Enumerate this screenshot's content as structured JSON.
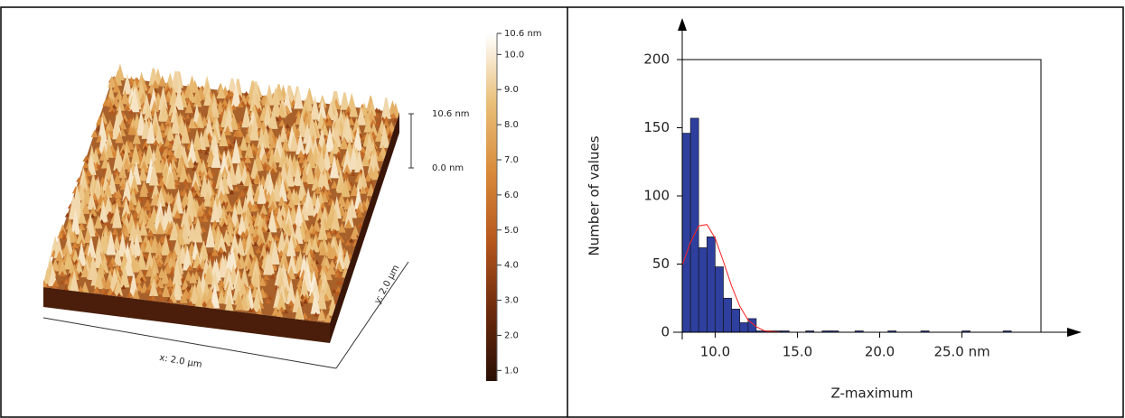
{
  "chart_data": [
    {
      "type": "surface",
      "xlabel": "x: 2.0 µm",
      "ylabel": "y: 2.0 µm",
      "zlim": [
        0,
        10.6
      ],
      "zticks": [
        {
          "value": 10.6,
          "label": "10.6 nm"
        },
        {
          "value": 0,
          "label": "0.0 nm"
        }
      ],
      "colorbar": {
        "lim": [
          0.7,
          10.6
        ],
        "colors": [
          "#2a0f05",
          "#6b2a0c",
          "#b5561c",
          "#d88a3a",
          "#e9bf78",
          "#ffffff"
        ],
        "ticks": [
          {
            "value": 10.6,
            "label": "10.6 nm"
          },
          {
            "value": 10,
            "label": "10.0"
          },
          {
            "value": 9,
            "label": "9.0"
          },
          {
            "value": 8,
            "label": "8.0"
          },
          {
            "value": 7,
            "label": "7.0"
          },
          {
            "value": 6,
            "label": "6.0"
          },
          {
            "value": 5,
            "label": "5.0"
          },
          {
            "value": 4,
            "label": "4.0"
          },
          {
            "value": 3,
            "label": "3.0"
          },
          {
            "value": 2,
            "label": "2.0"
          },
          {
            "value": 1,
            "label": "1.0"
          }
        ]
      }
    },
    {
      "type": "histogram",
      "xlabel": "Z-maximum",
      "ylabel": "Number of values",
      "bins": [
        8.0,
        8.5,
        9.0,
        9.5,
        10.0,
        10.5,
        11.0,
        11.5,
        12.0,
        12.5,
        13.0,
        13.5,
        14.0,
        14.5,
        15.0,
        15.5,
        16.0,
        16.5,
        17.0,
        17.5,
        18.0,
        18.5,
        19.0,
        19.5,
        20.0,
        20.5,
        21.0,
        21.5,
        22.0,
        22.5,
        23.0,
        23.5,
        24.0,
        24.5,
        25.0,
        25.5,
        26.0,
        26.5,
        27.0,
        27.5,
        28.0
      ],
      "values": [
        146,
        157,
        62,
        70,
        48,
        25,
        17,
        7,
        10,
        1,
        1,
        1,
        1,
        0,
        0,
        1,
        0,
        1,
        1,
        0,
        0,
        1,
        0,
        0,
        0,
        1,
        0,
        0,
        0,
        1,
        0,
        0,
        0,
        0,
        1,
        0,
        0,
        0,
        0,
        1
      ],
      "color": "#2e3f9e",
      "fit": {
        "x": [
          8,
          8.5,
          9,
          9.5,
          10,
          10.5,
          11,
          11.5,
          12,
          12.5,
          13,
          14,
          20,
          28
        ],
        "values": [
          49,
          66,
          78,
          79,
          69,
          52,
          34,
          19,
          9,
          4,
          1,
          0,
          0,
          0
        ],
        "color": "#ff2020"
      },
      "xlim": [
        8,
        29.8
      ],
      "ylim": [
        0,
        200
      ],
      "xticks": [
        {
          "value": 10,
          "label": "10.0"
        },
        {
          "value": 15,
          "label": "15.0"
        },
        {
          "value": 20,
          "label": "20.0"
        },
        {
          "value": 25,
          "label": "25.0 nm"
        }
      ],
      "yticks": [
        0,
        50,
        100,
        150,
        200
      ]
    }
  ]
}
